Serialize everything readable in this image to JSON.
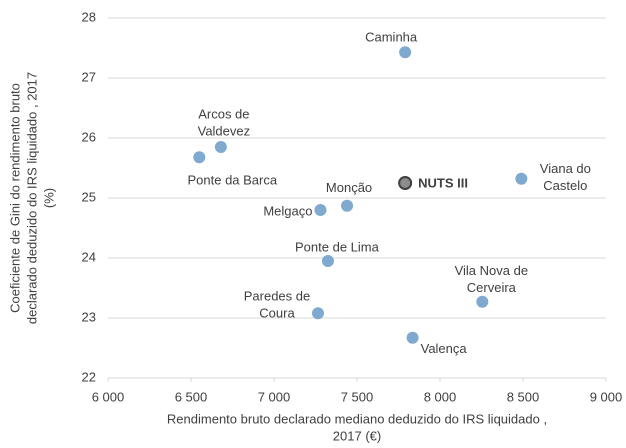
{
  "chart_data": {
    "type": "scatter",
    "x_label": [
      "Rendimento bruto declarado mediano deduzido do IRS liquidado ,",
      "2017 (€)"
    ],
    "y_label": [
      "Coeficiente de Gini do rendimento bruto",
      "declarado deduzido do IRS liquidado , 2017",
      "(%)"
    ],
    "xlim": [
      6000,
      9000
    ],
    "xticks": [
      {
        "value": 6000,
        "label": "6 000"
      },
      {
        "value": 6500,
        "label": "6 500"
      },
      {
        "value": 7000,
        "label": "7 000"
      },
      {
        "value": 7500,
        "label": "7 500"
      },
      {
        "value": 8000,
        "label": "8 000"
      },
      {
        "value": 8500,
        "label": "8 500"
      },
      {
        "value": 9000,
        "label": "9 000"
      }
    ],
    "ylim": [
      22,
      28
    ],
    "yticks": [
      22,
      23,
      24,
      25,
      26,
      27,
      28
    ],
    "grid": true,
    "color": "#7fa9cf",
    "highlight_color": "#8c8c8c",
    "labels": [
      [
        "Caminha"
      ],
      [
        "Arcos de",
        "Valdevez"
      ],
      [
        "Ponte da Barca"
      ],
      [
        "NUTS III"
      ],
      [
        "Viana do",
        "Castelo"
      ],
      [
        "Monção"
      ],
      [
        "Melgaço"
      ],
      [
        "Ponte de Lima"
      ],
      [
        "Vila Nova de",
        "Cerveira"
      ],
      [
        "Paredes de",
        "Coura"
      ],
      [
        "Valença"
      ]
    ],
    "x": [
      7790,
      6680,
      6550,
      7790,
      8490,
      7440,
      7280,
      7325,
      8255,
      7265,
      7835
    ],
    "values": [
      27.43,
      25.85,
      25.68,
      25.25,
      25.32,
      24.87,
      24.8,
      23.95,
      23.27,
      23.08,
      22.67
    ],
    "highlight": 3
  }
}
